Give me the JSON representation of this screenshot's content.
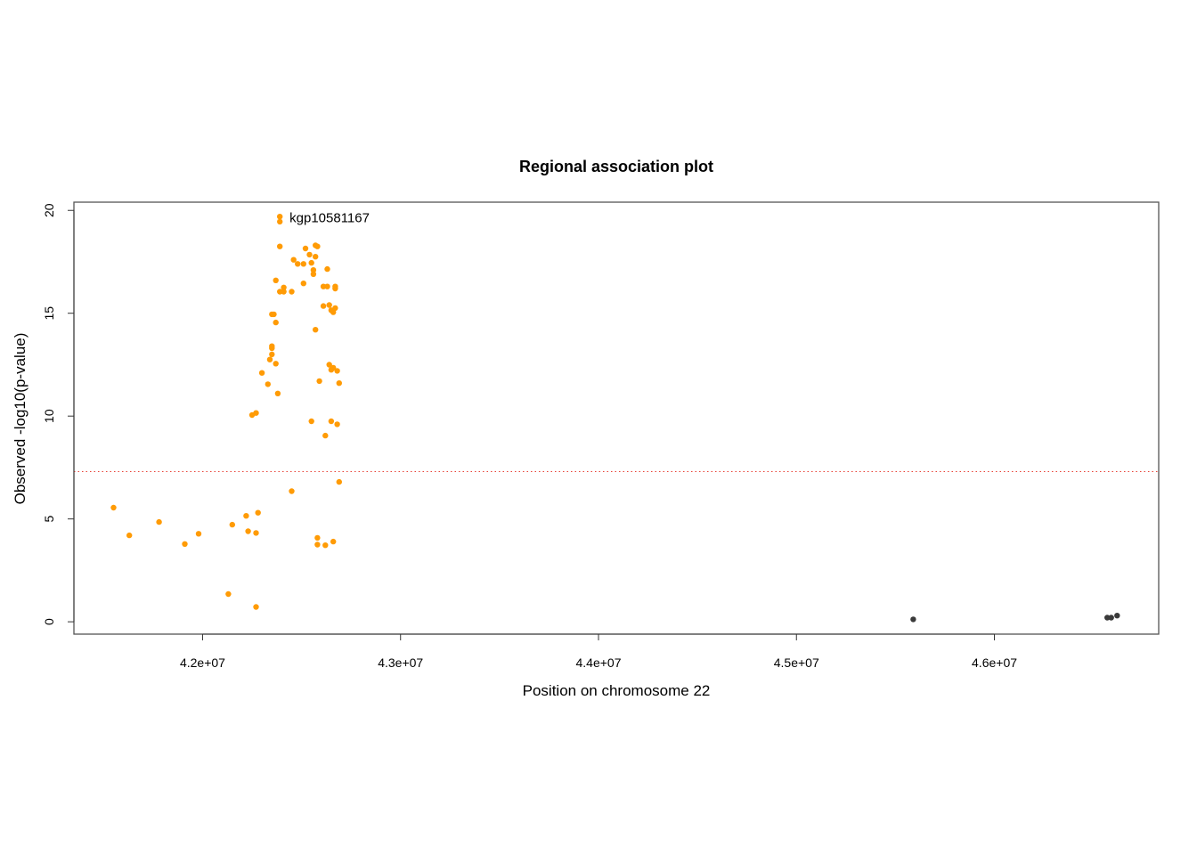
{
  "chart_data": {
    "type": "scatter",
    "title": "Regional association plot",
    "xlabel": "Position on chromosome 22",
    "ylabel": "Observed -log10(p-value)",
    "xlim": [
      41350000,
      46830000
    ],
    "ylim": [
      -0.6,
      20.4
    ],
    "x_ticks": [
      42000000,
      43000000,
      44000000,
      45000000,
      46000000
    ],
    "x_tick_labels": [
      "4.2e+07",
      "4.3e+07",
      "4.4e+07",
      "4.5e+07",
      "4.6e+07"
    ],
    "y_ticks": [
      0,
      5,
      10,
      15,
      20
    ],
    "y_tick_labels": [
      "0",
      "5",
      "10",
      "15",
      "20"
    ],
    "threshold": 7.3,
    "threshold_color": "#e8443a",
    "grid": false,
    "annotation": {
      "text": "kgp10581167",
      "x": 42390000,
      "y": 19.6
    },
    "series": [
      {
        "color": "#ff9b05",
        "points": [
          [
            41550000,
            5.55
          ],
          [
            41630000,
            4.2
          ],
          [
            41780000,
            4.85
          ],
          [
            41910000,
            3.78
          ],
          [
            41980000,
            4.28
          ],
          [
            42130000,
            1.35
          ],
          [
            42150000,
            4.72
          ],
          [
            42220000,
            5.15
          ],
          [
            42230000,
            4.4
          ],
          [
            42250000,
            10.05
          ],
          [
            42270000,
            10.15
          ],
          [
            42270000,
            0.72
          ],
          [
            42270000,
            4.32
          ],
          [
            42280000,
            5.3
          ],
          [
            42300000,
            12.1
          ],
          [
            42330000,
            11.55
          ],
          [
            42340000,
            12.75
          ],
          [
            42350000,
            13.0
          ],
          [
            42350000,
            13.3
          ],
          [
            42350000,
            13.4
          ],
          [
            42350000,
            14.95
          ],
          [
            42360000,
            14.95
          ],
          [
            42370000,
            12.55
          ],
          [
            42370000,
            14.55
          ],
          [
            42370000,
            16.6
          ],
          [
            42380000,
            11.1
          ],
          [
            42390000,
            16.05
          ],
          [
            42390000,
            18.25
          ],
          [
            42390000,
            19.45
          ],
          [
            42390000,
            19.7
          ],
          [
            42410000,
            16.05
          ],
          [
            42410000,
            16.25
          ],
          [
            42450000,
            16.05
          ],
          [
            42450000,
            6.35
          ],
          [
            42460000,
            17.6
          ],
          [
            42480000,
            17.4
          ],
          [
            42510000,
            16.45
          ],
          [
            42510000,
            17.4
          ],
          [
            42520000,
            18.15
          ],
          [
            42540000,
            17.85
          ],
          [
            42550000,
            17.45
          ],
          [
            42550000,
            9.75
          ],
          [
            42560000,
            16.9
          ],
          [
            42560000,
            17.1
          ],
          [
            42570000,
            17.75
          ],
          [
            42570000,
            18.3
          ],
          [
            42570000,
            14.2
          ],
          [
            42580000,
            18.25
          ],
          [
            42580000,
            4.08
          ],
          [
            42580000,
            3.75
          ],
          [
            42590000,
            11.7
          ],
          [
            42610000,
            16.3
          ],
          [
            42610000,
            15.35
          ],
          [
            42620000,
            3.72
          ],
          [
            42620000,
            9.05
          ],
          [
            42630000,
            17.15
          ],
          [
            42630000,
            16.3
          ],
          [
            42640000,
            12.5
          ],
          [
            42640000,
            15.4
          ],
          [
            42650000,
            15.15
          ],
          [
            42650000,
            12.25
          ],
          [
            42650000,
            9.75
          ],
          [
            42660000,
            15.05
          ],
          [
            42660000,
            3.9
          ],
          [
            42660000,
            12.35
          ],
          [
            42670000,
            16.2
          ],
          [
            42670000,
            16.3
          ],
          [
            42670000,
            15.25
          ],
          [
            42680000,
            9.6
          ],
          [
            42680000,
            12.2
          ],
          [
            42690000,
            11.6
          ],
          [
            42690000,
            6.8
          ]
        ]
      },
      {
        "color": "#3a3a3a",
        "points": [
          [
            45590000,
            0.12
          ],
          [
            46570000,
            0.2
          ],
          [
            46590000,
            0.2
          ],
          [
            46620000,
            0.3
          ]
        ]
      }
    ]
  }
}
